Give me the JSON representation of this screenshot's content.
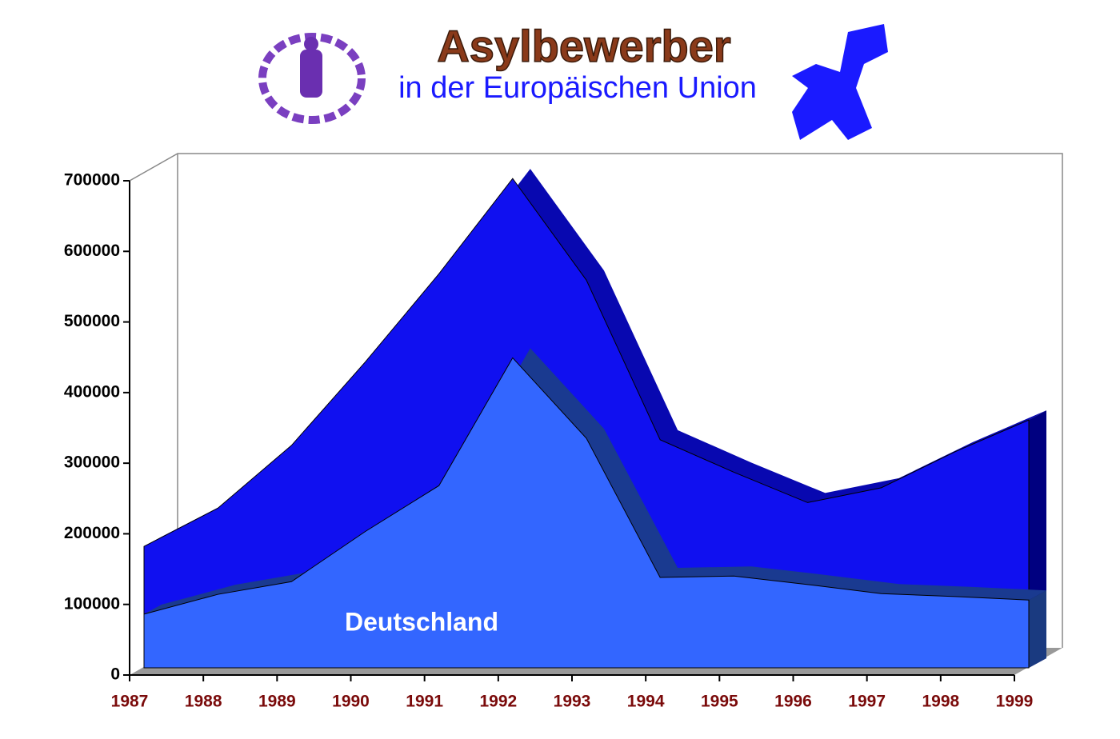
{
  "chart_data": {
    "type": "area3d",
    "title": "Asylbewerber",
    "subtitle": "in der Europäischen Union",
    "categories": [
      "1987",
      "1988",
      "1989",
      "1990",
      "1991",
      "1992",
      "1993",
      "1994",
      "1995",
      "1996",
      "1997",
      "1998",
      "1999"
    ],
    "series": [
      {
        "color": "#1010f0",
        "values": [
          172000,
          226000,
          315000,
          433000,
          558000,
          693000,
          549000,
          323000,
          277000,
          234000,
          255000,
          306000,
          351000
        ]
      },
      {
        "name": "Deutschland",
        "color": "#3366ff",
        "values": [
          76000,
          104000,
          122000,
          193000,
          258000,
          439000,
          325000,
          128000,
          130000,
          118000,
          105000,
          101000,
          96000
        ]
      }
    ],
    "ylim": [
      0,
      700000
    ],
    "yticks": [
      0,
      100000,
      200000,
      300000,
      400000,
      500000,
      600000,
      700000
    ]
  }
}
